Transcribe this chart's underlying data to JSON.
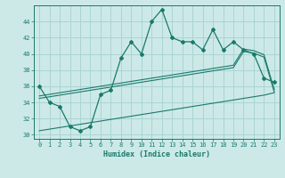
{
  "title": "",
  "xlabel": "Humidex (Indice chaleur)",
  "background_color": "#cce9e8",
  "grid_color": "#aad4d3",
  "line_color": "#1a7a6a",
  "x_data": [
    0,
    1,
    2,
    3,
    4,
    5,
    6,
    7,
    8,
    9,
    10,
    11,
    12,
    13,
    14,
    15,
    16,
    17,
    18,
    19,
    20,
    21,
    22,
    23
  ],
  "main_line": [
    36,
    34,
    33.5,
    31,
    30.5,
    31,
    35,
    35.5,
    39.5,
    41.5,
    40,
    44,
    45.5,
    42,
    41.5,
    41.5,
    40.5,
    43,
    40.5,
    41.5,
    40.5,
    40,
    37,
    36.5
  ],
  "trend_upper1": [
    34.5,
    34.7,
    34.9,
    35.1,
    35.3,
    35.5,
    35.7,
    35.9,
    36.1,
    36.3,
    36.5,
    36.7,
    36.9,
    37.1,
    37.3,
    37.5,
    37.7,
    37.9,
    38.1,
    38.3,
    40.3,
    40.1,
    39.6,
    35.3
  ],
  "trend_upper2": [
    34.8,
    35.0,
    35.2,
    35.4,
    35.6,
    35.8,
    36.0,
    36.2,
    36.4,
    36.6,
    36.8,
    37.0,
    37.2,
    37.4,
    37.6,
    37.8,
    38.0,
    38.2,
    38.4,
    38.6,
    40.6,
    40.4,
    39.9,
    35.6
  ],
  "trend_lower": [
    30.5,
    30.7,
    30.9,
    31.1,
    31.3,
    31.5,
    31.7,
    31.9,
    32.1,
    32.3,
    32.5,
    32.7,
    32.9,
    33.1,
    33.3,
    33.5,
    33.7,
    33.9,
    34.1,
    34.3,
    34.5,
    34.7,
    34.9,
    35.2
  ],
  "ylim": [
    29.5,
    46
  ],
  "xlim": [
    -0.5,
    23.5
  ],
  "yticks": [
    30,
    32,
    34,
    36,
    38,
    40,
    42,
    44
  ],
  "xticks": [
    0,
    1,
    2,
    3,
    4,
    5,
    6,
    7,
    8,
    9,
    10,
    11,
    12,
    13,
    14,
    15,
    16,
    17,
    18,
    19,
    20,
    21,
    22,
    23
  ]
}
